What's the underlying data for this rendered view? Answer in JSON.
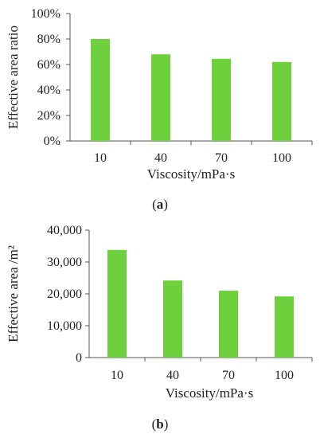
{
  "colors": {
    "bar": "#6fd03e",
    "axis": "#555555"
  },
  "chart_data": [
    {
      "type": "bar",
      "panel": "a",
      "title": "",
      "xlabel": "Viscosity/mPa·s",
      "ylabel": "Effective  area ratio",
      "categories": [
        "10",
        "40",
        "70",
        "100"
      ],
      "values": [
        80,
        68,
        64.5,
        62
      ],
      "ylim": [
        0,
        100
      ],
      "yticks": [
        "0%",
        "20%",
        "40%",
        "60%",
        "80%",
        "100%"
      ],
      "grid": false,
      "legend": "none"
    },
    {
      "type": "bar",
      "panel": "b",
      "title": "",
      "xlabel": "Viscosity/mPa·s",
      "ylabel": "Effective  area /m²",
      "categories": [
        "10",
        "40",
        "70",
        "100"
      ],
      "values": [
        33800,
        24200,
        21000,
        19200
      ],
      "ylim": [
        0,
        40000
      ],
      "yticks": [
        "0",
        "10,000",
        "20,000",
        "30,000",
        "40,000"
      ],
      "grid": false,
      "legend": "none"
    }
  ],
  "labels": {
    "panel_a": "a",
    "panel_b": "b"
  }
}
